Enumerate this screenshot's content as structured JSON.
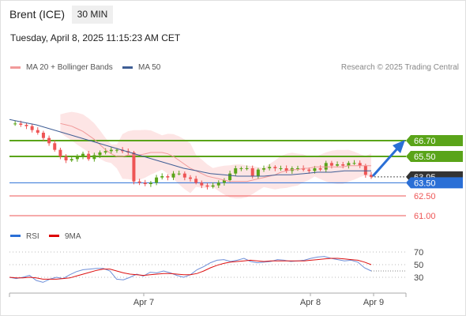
{
  "header": {
    "instrument": "Brent (ICE)",
    "timeframe": "30 MIN",
    "datetime": "Tuesday, April 8, 2025 11:15:23 AM CET"
  },
  "legend": {
    "ma20_label": "MA 20 + Bollinger Bands",
    "ma50_label": "MA 50",
    "credit": "Research © 2025 Trading Central"
  },
  "rsi_legend": {
    "rsi_label": "RSI",
    "ma9_label": "9MA"
  },
  "colors": {
    "green": "#5aa419",
    "blue": "#2a6fd6",
    "red": "#ee5555",
    "dark": "#333333",
    "ma20": "#f19a9a",
    "ma50": "#3f5e95",
    "band": "#fde2e2"
  },
  "chart_data": [
    {
      "type": "line",
      "title": "Brent (ICE) 30 MIN",
      "x_ticks": [
        "Apr 7",
        "Apr 8",
        "Apr 9"
      ],
      "ylim": [
        60.0,
        68.2
      ],
      "levels": [
        {
          "label": "66.70",
          "value": 66.7,
          "kind": "resistance"
        },
        {
          "label": "65.50",
          "value": 65.5,
          "kind": "resistance"
        },
        {
          "label": "63.95",
          "value": 63.95,
          "kind": "current"
        },
        {
          "label": "63.50",
          "value": 63.5,
          "kind": "pivot"
        },
        {
          "label": "62.50",
          "value": 62.5,
          "kind": "support"
        },
        {
          "label": "61.00",
          "value": 61.0,
          "kind": "support"
        }
      ],
      "close_series": [
        68.0,
        68.0,
        67.9,
        67.8,
        67.5,
        67.3,
        66.9,
        66.5,
        66.0,
        65.5,
        65.2,
        65.3,
        65.5,
        65.7,
        65.3,
        65.6,
        65.8,
        65.9,
        66.0,
        66.0,
        65.9,
        65.8,
        63.6,
        63.5,
        63.4,
        63.5,
        63.9,
        64.0,
        63.9,
        64.2,
        64.2,
        63.9,
        63.8,
        63.5,
        63.3,
        63.2,
        63.3,
        63.5,
        63.7,
        64.2,
        64.6,
        64.6,
        64.6,
        64.0,
        64.5,
        64.6,
        64.7,
        64.6,
        64.6,
        64.4,
        64.6,
        64.6,
        64.5,
        64.4,
        64.6,
        64.5,
        65.0,
        64.8,
        64.9,
        64.8,
        65.0,
        65.0,
        64.8,
        64.1,
        63.95
      ],
      "ma20": [
        68.0,
        67.9,
        67.8,
        67.6,
        67.4,
        67.1,
        66.8,
        66.4,
        66.0,
        65.7,
        65.5,
        65.5,
        65.6,
        65.6,
        65.6,
        65.7,
        65.8,
        65.8,
        65.8,
        65.7,
        65.5,
        65.2,
        64.9,
        64.6,
        64.4,
        64.2,
        64.0,
        63.9,
        63.8,
        63.7,
        63.6,
        63.6,
        63.6,
        63.6,
        63.7,
        63.8,
        63.9,
        64.0,
        64.1,
        64.3,
        64.4,
        64.5,
        64.5,
        64.6,
        64.6,
        64.7,
        64.7,
        64.7,
        64.7,
        64.7,
        64.7,
        64.8,
        64.8,
        64.8,
        64.8,
        64.8
      ],
      "ma50": [
        68.3,
        68.1,
        67.9,
        67.6,
        67.3,
        67.0,
        66.7,
        66.4,
        66.1,
        65.8,
        65.5,
        65.2,
        64.9,
        64.6,
        64.4,
        64.2,
        64.1,
        64.0,
        64.0,
        64.0,
        64.1,
        64.1,
        64.2,
        64.3,
        64.3,
        64.4,
        64.4,
        64.4
      ],
      "ma_labels": [
        "MA 20 + Bollinger Bands",
        "MA 50"
      ],
      "projection": "up to 66.70"
    },
    {
      "type": "line",
      "title": "RSI",
      "y_ticks": [
        70,
        50,
        30
      ],
      "ylim": [
        10,
        80
      ],
      "series": [
        {
          "name": "RSI",
          "values": [
            30,
            28,
            30,
            33,
            25,
            22,
            27,
            30,
            28,
            34,
            39,
            42,
            43,
            44,
            44,
            40,
            27,
            26,
            30,
            35,
            32,
            38,
            37,
            40,
            37,
            33,
            30,
            34,
            42,
            47,
            53,
            57,
            58,
            55,
            57,
            60,
            55,
            53,
            54,
            55,
            58,
            57,
            55,
            56,
            57,
            60,
            62,
            63,
            60,
            58,
            56,
            57,
            54,
            45,
            40
          ]
        },
        {
          "name": "9MA",
          "values": [
            30,
            29,
            29,
            30,
            29,
            27,
            27,
            27,
            28,
            29,
            32,
            35,
            38,
            41,
            43,
            43,
            40,
            37,
            35,
            34,
            33,
            34,
            35,
            36,
            36,
            35,
            34,
            34,
            36,
            40,
            45,
            49,
            52,
            54,
            55,
            56,
            57,
            56,
            55,
            56,
            56,
            56,
            56,
            56,
            56,
            57,
            58,
            59,
            60,
            60,
            59,
            58,
            57,
            54,
            50
          ]
        }
      ]
    }
  ]
}
